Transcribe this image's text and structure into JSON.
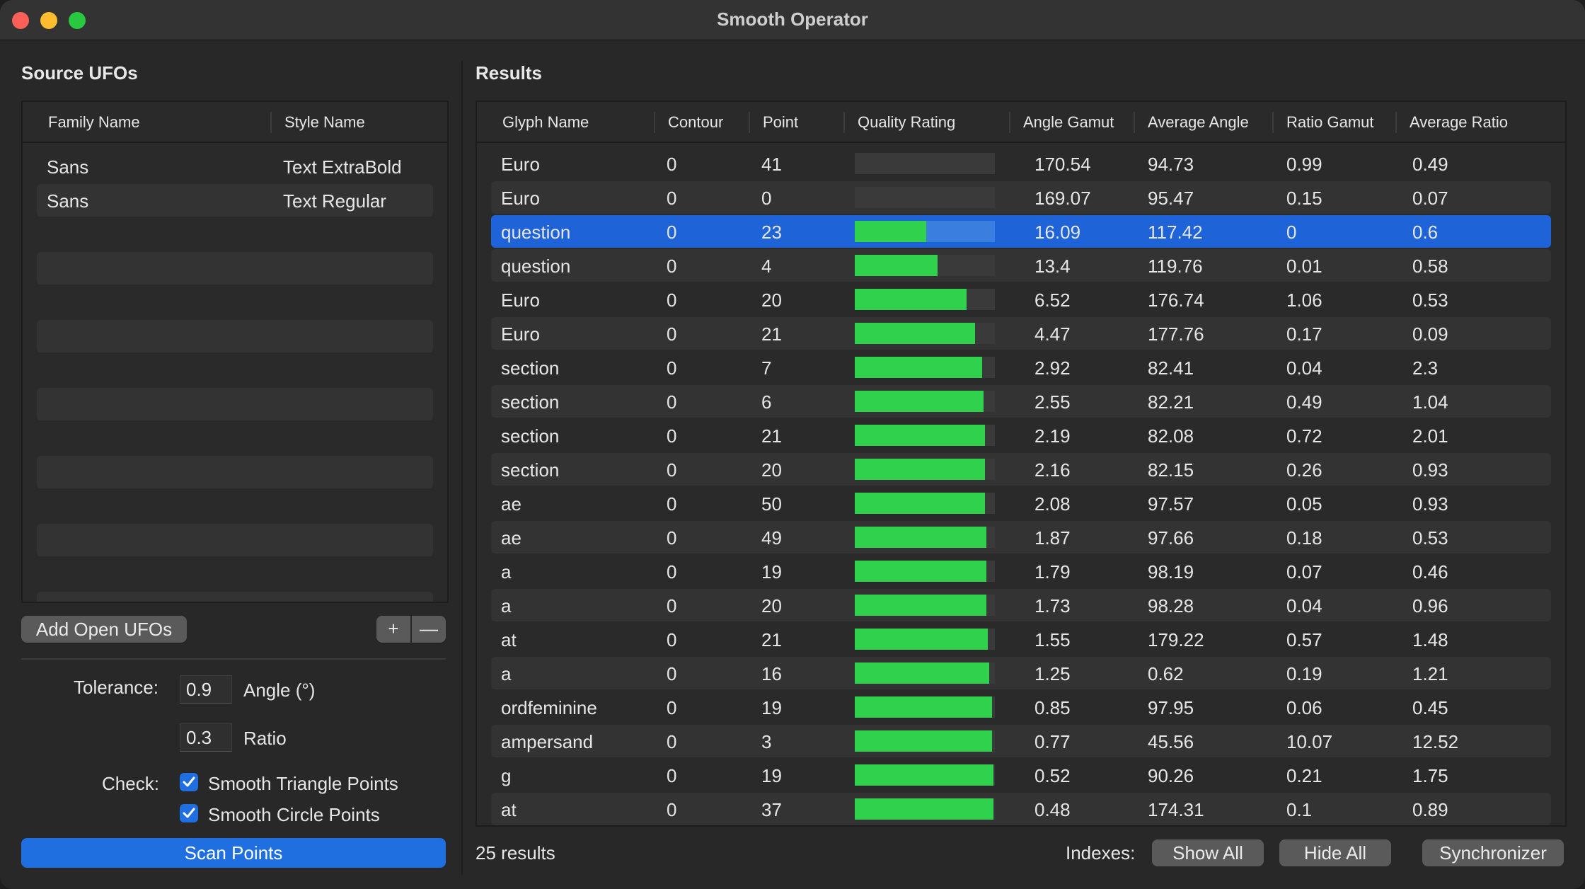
{
  "window": {
    "title": "Smooth Operator"
  },
  "source": {
    "section_title": "Source UFOs",
    "columns": [
      "Family Name",
      "Style Name"
    ],
    "rows": [
      {
        "family": "Sans",
        "style": "Text ExtraBold"
      },
      {
        "family": "Sans",
        "style": "Text Regular"
      }
    ],
    "add_button": "Add Open UFOs",
    "plus_label": "+",
    "minus_label": "—"
  },
  "settings": {
    "tolerance_label": "Tolerance:",
    "angle_value": "0.9",
    "angle_label": "Angle (°)",
    "ratio_value": "0.3",
    "ratio_label": "Ratio",
    "check_label": "Check:",
    "check1_label": "Smooth Triangle Points",
    "check1_checked": true,
    "check2_label": "Smooth Circle Points",
    "check2_checked": true,
    "scan_button": "Scan Points"
  },
  "results": {
    "section_title": "Results",
    "columns": [
      "Glyph Name",
      "Contour",
      "Point",
      "Quality Rating",
      "Angle Gamut",
      "Average Angle",
      "Ratio Gamut",
      "Average Ratio"
    ],
    "selected_index": 2,
    "rows": [
      {
        "glyph": "Euro",
        "contour": "0",
        "point": "41",
        "quality": 0.0,
        "angle_gamut": "170.54",
        "avg_angle": "94.73",
        "ratio_gamut": "0.99",
        "avg_ratio": "0.49"
      },
      {
        "glyph": "Euro",
        "contour": "0",
        "point": "0",
        "quality": 0.0,
        "angle_gamut": "169.07",
        "avg_angle": "95.47",
        "ratio_gamut": "0.15",
        "avg_ratio": "0.07"
      },
      {
        "glyph": "question",
        "contour": "0",
        "point": "23",
        "quality": 0.51,
        "angle_gamut": "16.09",
        "avg_angle": "117.42",
        "ratio_gamut": "0",
        "avg_ratio": "0.6"
      },
      {
        "glyph": "question",
        "contour": "0",
        "point": "4",
        "quality": 0.59,
        "angle_gamut": "13.4",
        "avg_angle": "119.76",
        "ratio_gamut": "0.01",
        "avg_ratio": "0.58"
      },
      {
        "glyph": "Euro",
        "contour": "0",
        "point": "20",
        "quality": 0.8,
        "angle_gamut": "6.52",
        "avg_angle": "176.74",
        "ratio_gamut": "1.06",
        "avg_ratio": "0.53"
      },
      {
        "glyph": "Euro",
        "contour": "0",
        "point": "21",
        "quality": 0.86,
        "angle_gamut": "4.47",
        "avg_angle": "177.76",
        "ratio_gamut": "0.17",
        "avg_ratio": "0.09"
      },
      {
        "glyph": "section",
        "contour": "0",
        "point": "7",
        "quality": 0.91,
        "angle_gamut": "2.92",
        "avg_angle": "82.41",
        "ratio_gamut": "0.04",
        "avg_ratio": "2.3"
      },
      {
        "glyph": "section",
        "contour": "0",
        "point": "6",
        "quality": 0.92,
        "angle_gamut": "2.55",
        "avg_angle": "82.21",
        "ratio_gamut": "0.49",
        "avg_ratio": "1.04"
      },
      {
        "glyph": "section",
        "contour": "0",
        "point": "21",
        "quality": 0.93,
        "angle_gamut": "2.19",
        "avg_angle": "82.08",
        "ratio_gamut": "0.72",
        "avg_ratio": "2.01"
      },
      {
        "glyph": "section",
        "contour": "0",
        "point": "20",
        "quality": 0.93,
        "angle_gamut": "2.16",
        "avg_angle": "82.15",
        "ratio_gamut": "0.26",
        "avg_ratio": "0.93"
      },
      {
        "glyph": "ae",
        "contour": "0",
        "point": "50",
        "quality": 0.93,
        "angle_gamut": "2.08",
        "avg_angle": "97.57",
        "ratio_gamut": "0.05",
        "avg_ratio": "0.93"
      },
      {
        "glyph": "ae",
        "contour": "0",
        "point": "49",
        "quality": 0.94,
        "angle_gamut": "1.87",
        "avg_angle": "97.66",
        "ratio_gamut": "0.18",
        "avg_ratio": "0.53"
      },
      {
        "glyph": "a",
        "contour": "0",
        "point": "19",
        "quality": 0.94,
        "angle_gamut": "1.79",
        "avg_angle": "98.19",
        "ratio_gamut": "0.07",
        "avg_ratio": "0.46"
      },
      {
        "glyph": "a",
        "contour": "0",
        "point": "20",
        "quality": 0.94,
        "angle_gamut": "1.73",
        "avg_angle": "98.28",
        "ratio_gamut": "0.04",
        "avg_ratio": "0.96"
      },
      {
        "glyph": "at",
        "contour": "0",
        "point": "21",
        "quality": 0.95,
        "angle_gamut": "1.55",
        "avg_angle": "179.22",
        "ratio_gamut": "0.57",
        "avg_ratio": "1.48"
      },
      {
        "glyph": "a",
        "contour": "0",
        "point": "16",
        "quality": 0.96,
        "angle_gamut": "1.25",
        "avg_angle": "0.62",
        "ratio_gamut": "0.19",
        "avg_ratio": "1.21"
      },
      {
        "glyph": "ordfeminine",
        "contour": "0",
        "point": "19",
        "quality": 0.98,
        "angle_gamut": "0.85",
        "avg_angle": "97.95",
        "ratio_gamut": "0.06",
        "avg_ratio": "0.45"
      },
      {
        "glyph": "ampersand",
        "contour": "0",
        "point": "3",
        "quality": 0.98,
        "angle_gamut": "0.77",
        "avg_angle": "45.56",
        "ratio_gamut": "10.07",
        "avg_ratio": "12.52"
      },
      {
        "glyph": "g",
        "contour": "0",
        "point": "19",
        "quality": 0.99,
        "angle_gamut": "0.52",
        "avg_angle": "90.26",
        "ratio_gamut": "0.21",
        "avg_ratio": "1.75"
      },
      {
        "glyph": "at",
        "contour": "0",
        "point": "37",
        "quality": 0.99,
        "angle_gamut": "0.48",
        "avg_angle": "174.31",
        "ratio_gamut": "0.1",
        "avg_ratio": "0.89"
      }
    ],
    "count_text": "25 results",
    "indexes_label": "Indexes:",
    "show_all": "Show All",
    "hide_all": "Hide All",
    "synchronizer": "Synchronizer"
  },
  "colors": {
    "accent": "#1f6fe0",
    "bar_fill": "#2fd14d",
    "selection": "#1f63d8"
  },
  "icons": {
    "checkbox": "checkmark-icon"
  }
}
